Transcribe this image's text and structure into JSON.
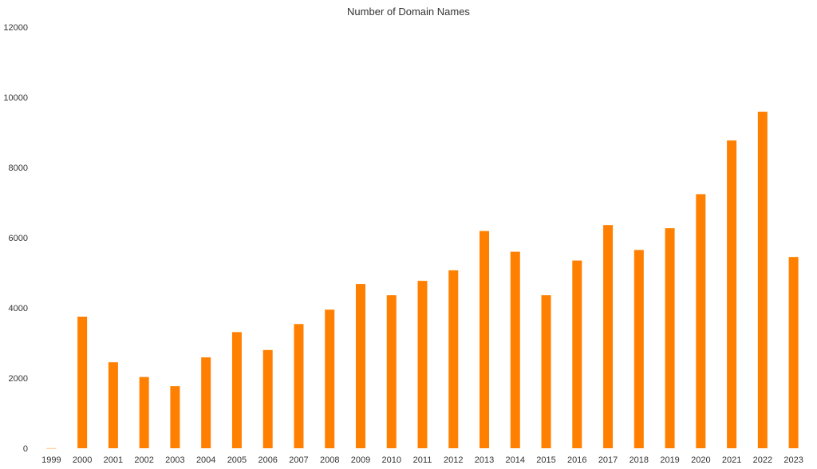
{
  "chart_data": {
    "type": "bar",
    "title": "Number of Domain Names",
    "xlabel": "",
    "ylabel": "",
    "categories": [
      "1999",
      "2000",
      "2001",
      "2002",
      "2003",
      "2004",
      "2005",
      "2006",
      "2007",
      "2008",
      "2009",
      "2010",
      "2011",
      "2012",
      "2013",
      "2014",
      "2015",
      "2016",
      "2017",
      "2018",
      "2019",
      "2020",
      "2021",
      "2022",
      "2023"
    ],
    "series": [
      {
        "values": [
          3,
          3750,
          2450,
          2030,
          1770,
          2590,
          3310,
          2800,
          3540,
          3950,
          4680,
          4360,
          4770,
          5070,
          6190,
          5600,
          4360,
          5350,
          6360,
          5650,
          6270,
          7240,
          8770,
          9590,
          5450
        ],
        "color": "#FF8000"
      }
    ],
    "ylim": [
      0,
      12000
    ],
    "yticks": [
      "0",
      "2000",
      "4000",
      "6000",
      "8000",
      "10000",
      "12000"
    ],
    "grid": false,
    "legend": "none"
  }
}
